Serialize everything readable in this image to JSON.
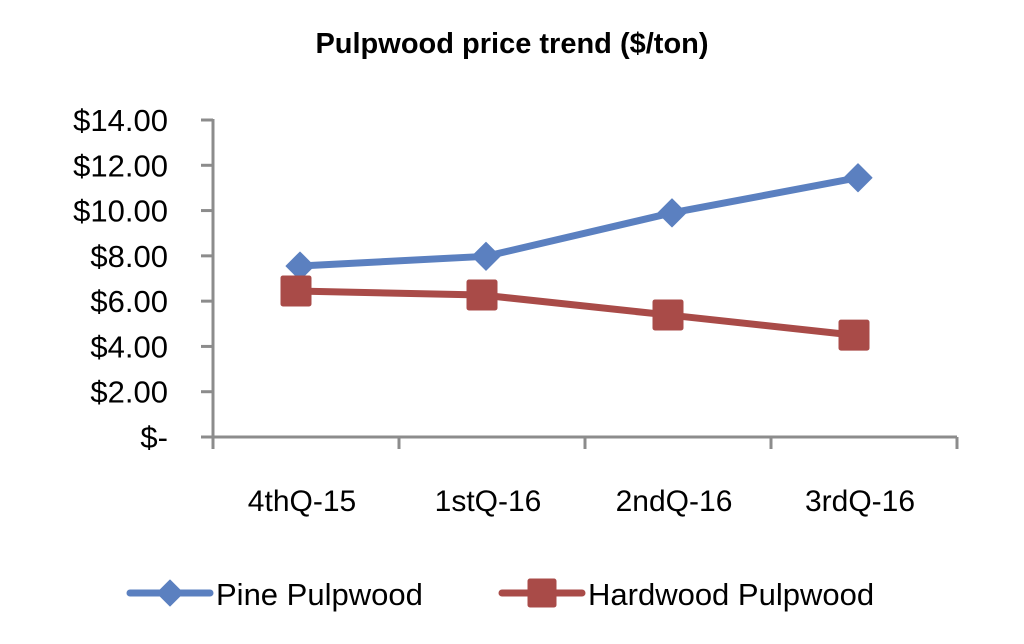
{
  "chart_data": {
    "type": "line",
    "title": "Pulpwood price trend ($/ton)",
    "xlabel": "",
    "ylabel": "",
    "categories": [
      "4thQ-15",
      "1stQ-16",
      "2ndQ-16",
      "3rdQ-16"
    ],
    "series": [
      {
        "name": "Pine Pulpwood",
        "marker": "diamond",
        "color": "#5b80c0",
        "values": [
          7.55,
          7.98,
          9.9,
          11.45
        ]
      },
      {
        "name": "Hardwood Pulpwood",
        "marker": "square",
        "color": "#a94b48",
        "values": [
          6.45,
          6.27,
          5.39,
          4.5
        ]
      }
    ],
    "ylim": [
      0,
      14
    ],
    "yticks": [
      0,
      2,
      4,
      6,
      8,
      10,
      12,
      14
    ],
    "ytick_labels": [
      "$-",
      "$2.00",
      "$4.00",
      "$6.00",
      "$8.00",
      "$10.00",
      "$12.00",
      "$14.00"
    ],
    "grid": false,
    "legend_position": "bottom"
  },
  "axis_color": "#8c8c8c"
}
